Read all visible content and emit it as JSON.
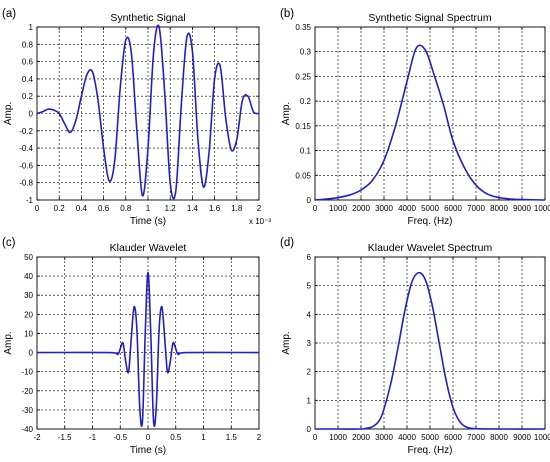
{
  "chart_data": [
    {
      "panel_label": "(a)",
      "type": "line",
      "title": "Synthetic Signal",
      "xlabel": "Time (s)",
      "ylabel": "Amp.",
      "xlim": [
        0,
        2
      ],
      "ylim": [
        -1,
        1
      ],
      "x_ticks": [
        0,
        0.2,
        0.4,
        0.6,
        0.8,
        1,
        1.2,
        1.4,
        1.6,
        1.8,
        2
      ],
      "y_ticks": [
        -1,
        -0.8,
        -0.6,
        -0.4,
        -0.2,
        0,
        0.2,
        0.4,
        0.6,
        0.8,
        1
      ],
      "x_tick_labels": [
        "0",
        "0.2",
        "0.4",
        "0.6",
        "0.8",
        "1",
        "1.2",
        "1.4",
        "1.6",
        "1.8",
        "2"
      ],
      "y_tick_labels": [
        "-1",
        "-0.8",
        "-0.6",
        "-0.4",
        "-0.2",
        "0",
        "0.2",
        "0.4",
        "0.6",
        "0.8",
        "1"
      ],
      "x_exponent": "x 10⁻³",
      "grid": true,
      "color": "#1f1fc8",
      "series": [
        {
          "x": [
            0,
            0.05,
            0.1,
            0.15,
            0.2,
            0.25,
            0.3,
            0.35,
            0.4,
            0.45,
            0.5,
            0.55,
            0.6,
            0.65,
            0.7,
            0.75,
            0.8,
            0.85,
            0.9,
            0.95,
            1.0,
            1.05,
            1.1,
            1.15,
            1.2,
            1.25,
            1.3,
            1.35,
            1.4,
            1.45,
            1.5,
            1.55,
            1.6,
            1.65,
            1.7,
            1.75,
            1.8,
            1.85,
            1.9,
            1.95,
            2.0
          ],
          "y": [
            0,
            0.02,
            0.05,
            0.04,
            0,
            -0.12,
            -0.22,
            -0.08,
            0.2,
            0.45,
            0.48,
            0.15,
            -0.4,
            -0.78,
            -0.55,
            0.3,
            0.85,
            0.7,
            -0.2,
            -0.95,
            -0.4,
            0.7,
            1.0,
            0.25,
            -0.8,
            -0.9,
            0.1,
            0.88,
            0.72,
            -0.3,
            -0.85,
            -0.45,
            0.4,
            0.55,
            -0.05,
            -0.42,
            -0.3,
            0.15,
            0.2,
            0.02,
            0
          ]
        }
      ]
    },
    {
      "panel_label": "(b)",
      "type": "line",
      "title": "Synthetic Signal Spectrum",
      "xlabel": "Freq. (Hz)",
      "ylabel": "Amp.",
      "xlim": [
        0,
        10000
      ],
      "ylim": [
        0,
        0.35
      ],
      "x_ticks": [
        0,
        1000,
        2000,
        3000,
        4000,
        5000,
        6000,
        7000,
        8000,
        9000,
        10000
      ],
      "y_ticks": [
        0,
        0.05,
        0.1,
        0.15,
        0.2,
        0.25,
        0.3,
        0.35
      ],
      "x_tick_labels": [
        "0",
        "1000",
        "2000",
        "3000",
        "4000",
        "5000",
        "6000",
        "7000",
        "8000",
        "9000",
        "10000"
      ],
      "y_tick_labels": [
        "0",
        "0.05",
        "0.1",
        "0.15",
        "0.2",
        "0.25",
        "0.3",
        "0.35"
      ],
      "grid": true,
      "color": "#1f1fc8",
      "series": [
        {
          "x": [
            0,
            500,
            1000,
            1500,
            2000,
            2500,
            3000,
            3500,
            4000,
            4400,
            4800,
            5200,
            5600,
            6000,
            6500,
            7000,
            7500,
            8000,
            8500,
            9000,
            10000
          ],
          "y": [
            0,
            0.002,
            0.005,
            0.01,
            0.02,
            0.04,
            0.08,
            0.15,
            0.24,
            0.307,
            0.303,
            0.25,
            0.19,
            0.12,
            0.065,
            0.03,
            0.012,
            0.005,
            0.002,
            0.001,
            0
          ]
        }
      ]
    },
    {
      "panel_label": "(c)",
      "type": "line",
      "title": "Klauder Wavelet",
      "xlabel": "Time (s)",
      "ylabel": "Amp.",
      "xlim": [
        -2,
        2
      ],
      "ylim": [
        -40,
        50
      ],
      "x_ticks": [
        -2,
        -1.5,
        -1,
        -0.5,
        0,
        0.5,
        1,
        1.5,
        2
      ],
      "y_ticks": [
        -40,
        -30,
        -20,
        -10,
        0,
        10,
        20,
        30,
        40,
        50
      ],
      "x_tick_labels": [
        "-2",
        "-1.5",
        "-1",
        "-0.5",
        "0",
        "0.5",
        "1",
        "1.5",
        "2"
      ],
      "y_tick_labels": [
        "-40",
        "-30",
        "-20",
        "-10",
        "0",
        "10",
        "20",
        "30",
        "40",
        "50"
      ],
      "grid": true,
      "color": "#1f1fc8",
      "series": [
        {
          "x": [
            -2,
            -0.7,
            -0.55,
            -0.5,
            -0.45,
            -0.4,
            -0.35,
            -0.3,
            -0.25,
            -0.2,
            -0.15,
            -0.1,
            -0.05,
            0,
            0.05,
            0.1,
            0.15,
            0.2,
            0.25,
            0.3,
            0.35,
            0.4,
            0.45,
            0.5,
            0.55,
            0.7,
            2
          ],
          "y": [
            0,
            0,
            -1,
            2,
            5,
            -5,
            -10,
            8,
            24,
            12,
            -28,
            -36,
            10,
            42,
            10,
            -36,
            -28,
            12,
            24,
            8,
            -10,
            -5,
            5,
            2,
            -1,
            0,
            0
          ]
        }
      ]
    },
    {
      "panel_label": "(d)",
      "type": "line",
      "title": "Klauder Wavelet Spectrum",
      "xlabel": "Freq. (Hz)",
      "ylabel": "Amp.",
      "xlim": [
        0,
        10000
      ],
      "ylim": [
        0,
        6
      ],
      "x_ticks": [
        0,
        1000,
        2000,
        3000,
        4000,
        5000,
        6000,
        7000,
        8000,
        9000,
        10000
      ],
      "y_ticks": [
        0,
        1,
        2,
        3,
        4,
        5,
        6
      ],
      "x_tick_labels": [
        "0",
        "1000",
        "2000",
        "3000",
        "4000",
        "5000",
        "6000",
        "7000",
        "8000",
        "9000",
        "10000"
      ],
      "y_tick_labels": [
        "0",
        "1",
        "2",
        "3",
        "4",
        "5",
        "6"
      ],
      "grid": true,
      "color": "#1f1fc8",
      "series": [
        {
          "x": [
            0,
            1000,
            2000,
            2200,
            2500,
            2800,
            3000,
            3300,
            3600,
            3900,
            4200,
            4500,
            4800,
            5100,
            5400,
            5700,
            6000,
            6300,
            6600,
            7000,
            8000,
            10000
          ],
          "y": [
            0,
            0,
            0,
            0.02,
            0.08,
            0.3,
            0.7,
            1.6,
            2.8,
            4.1,
            5.1,
            5.45,
            5.2,
            4.3,
            3.0,
            1.7,
            0.75,
            0.25,
            0.06,
            0.01,
            0,
            0
          ]
        }
      ]
    }
  ]
}
